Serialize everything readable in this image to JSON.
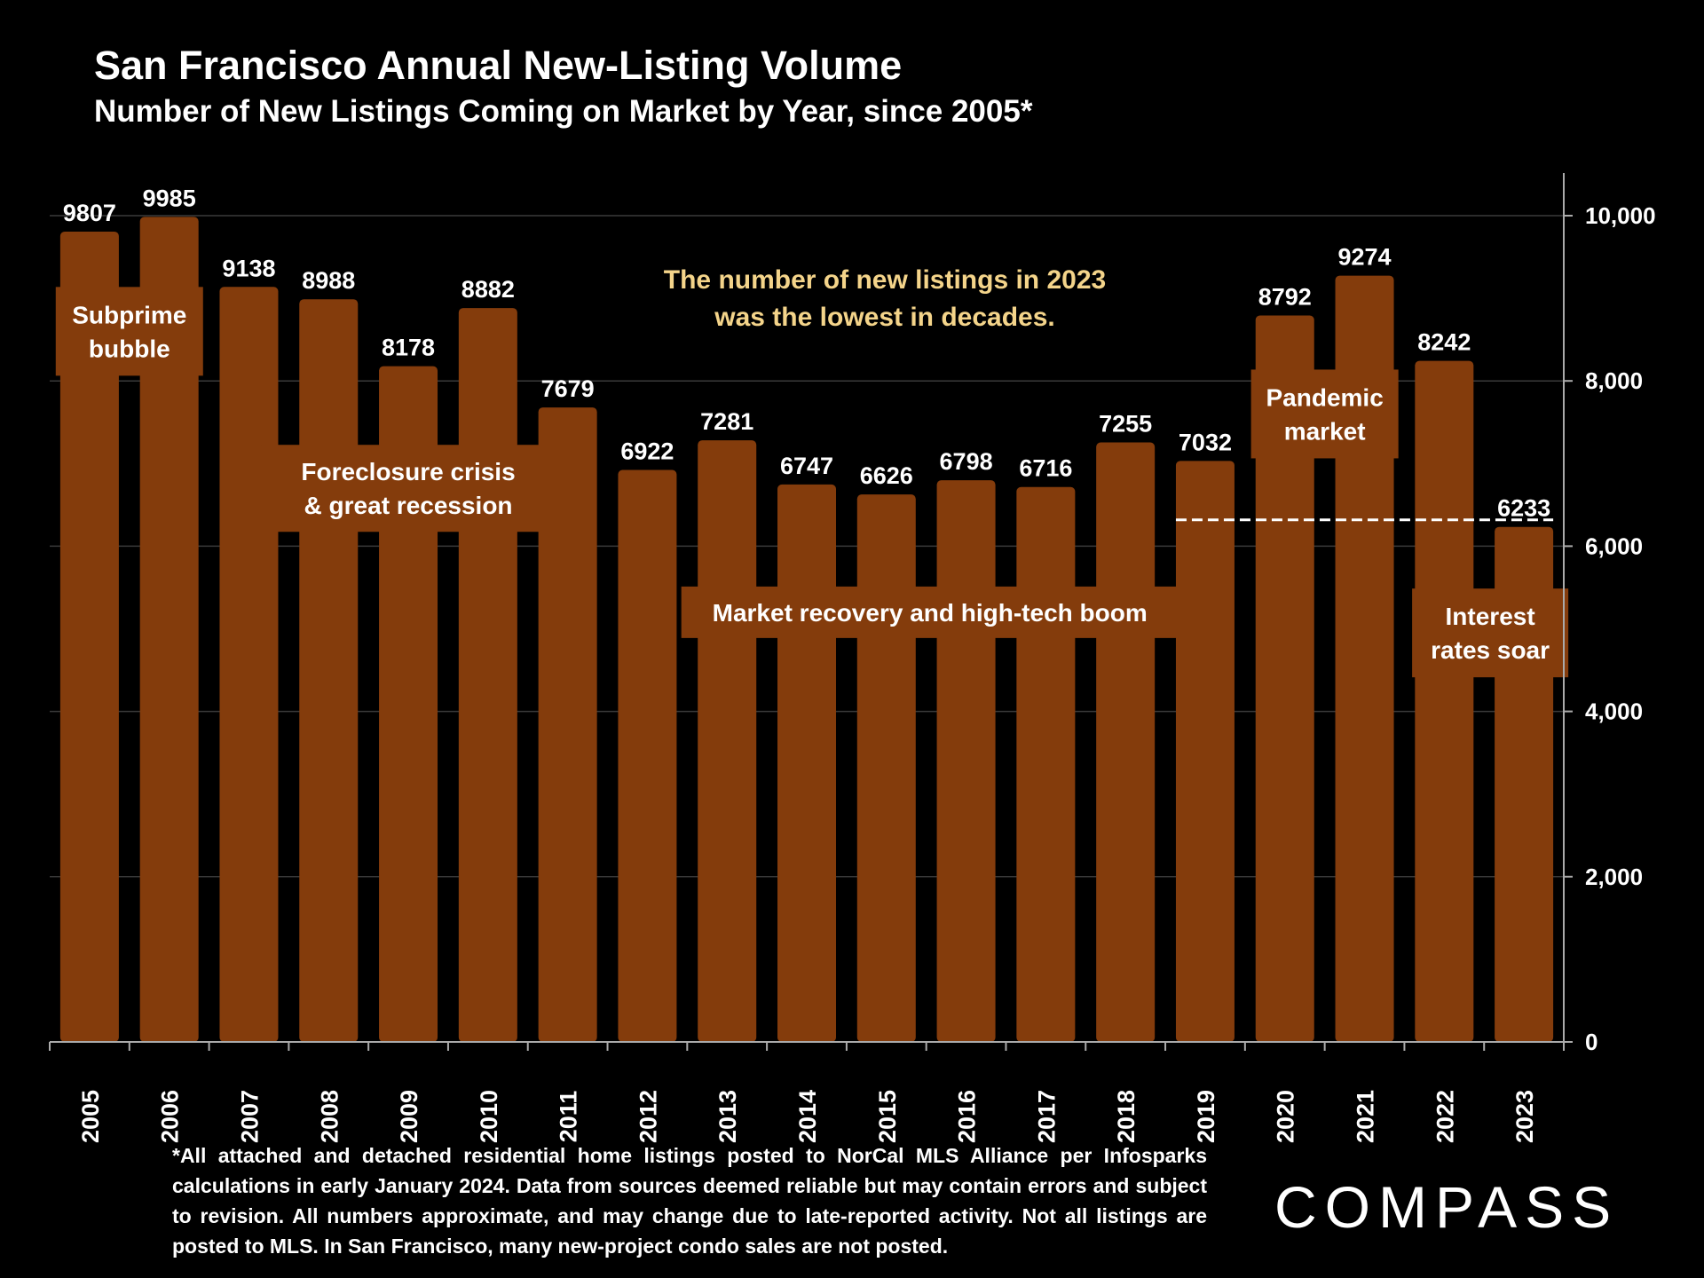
{
  "header": {
    "title": "San Francisco Annual New-Listing Volume",
    "subtitle": "Number of New Listings Coming on Market by Year, since 2005*"
  },
  "colors": {
    "bar": "#843c0c",
    "callout": "#f4d48a",
    "background": "#000000"
  },
  "chart_data": {
    "type": "bar",
    "title": "San Francisco Annual New-Listing Volume",
    "subtitle": "Number of New Listings Coming on Market by Year, since 2005*",
    "categories": [
      "2005",
      "2006",
      "2007",
      "2008",
      "2009",
      "2010",
      "2011",
      "2012",
      "2013",
      "2014",
      "2015",
      "2016",
      "2017",
      "2018",
      "2019",
      "2020",
      "2021",
      "2022",
      "2023"
    ],
    "values": [
      9807,
      9985,
      9138,
      8988,
      8178,
      8882,
      7679,
      6922,
      7281,
      6747,
      6626,
      6798,
      6716,
      7255,
      7032,
      8792,
      9274,
      8242,
      6233
    ],
    "data_labels": [
      "9807",
      "9985",
      "9138",
      "8988",
      "8178",
      "8882",
      "7679",
      "6922",
      "7281",
      "6747",
      "6626",
      "6798",
      "6716",
      "7255",
      "7032",
      "8792",
      "9274",
      "8242",
      "6233"
    ],
    "y_axis": {
      "side": "right",
      "min": 0,
      "max": 10000,
      "ticks": [
        0,
        2000,
        4000,
        6000,
        8000,
        10000
      ],
      "tick_labels": [
        "0",
        "2,000",
        "4,000",
        "6,000",
        "8,000",
        "10,000"
      ]
    },
    "xlabel": "",
    "ylabel": "",
    "grid": true,
    "reference_line": {
      "style": "dashed",
      "value": 6233,
      "from": "2019",
      "to": "2023"
    },
    "annotations": [
      {
        "lines": [
          "Subprime",
          "bubble"
        ],
        "years": [
          "2005",
          "2006"
        ],
        "value": 8600
      },
      {
        "lines": [
          "Foreclosure crisis",
          "& great recession"
        ],
        "years": [
          "2008",
          "2010"
        ],
        "value": 6700
      },
      {
        "lines": [
          "Market recovery and high-tech boom"
        ],
        "years": [
          "2012",
          "2019"
        ],
        "value": 5200
      },
      {
        "lines": [
          "Pandemic",
          "market"
        ],
        "years": [
          "2020",
          "2021"
        ],
        "value": 7600
      },
      {
        "lines": [
          "Interest",
          "rates soar"
        ],
        "years": [
          "2022",
          "2023"
        ],
        "value": 4950
      }
    ],
    "callout": [
      "The number of new listings in 2023",
      "was the lowest in decades."
    ]
  },
  "footnote": "*All attached and detached residential home listings posted to NorCal MLS Alliance per Infosparks calculations in early January 2024. Data from sources deemed reliable but may contain errors and subject to revision. All numbers approximate, and may change due to late-reported activity. Not all listings are posted to MLS. In San Francisco, many new-project condo sales are not posted.",
  "brand": {
    "logo_text": "COMPASS"
  }
}
